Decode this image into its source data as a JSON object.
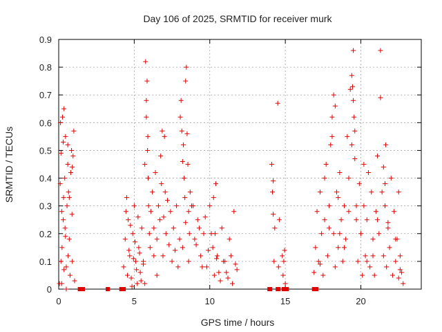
{
  "chart_data": {
    "type": "scatter",
    "title": "Day 106 of 2025, SRMTID for receiver murk",
    "xlabel": "GPS time / hours",
    "ylabel": "SRMTID / TECUs",
    "xlim": [
      0,
      24
    ],
    "ylim": [
      0,
      0.9
    ],
    "xticks": [
      0,
      5,
      10,
      15,
      20
    ],
    "yticks": [
      0,
      0.1,
      0.2,
      0.3,
      0.4,
      0.5,
      0.6,
      0.7,
      0.8,
      0.9
    ],
    "grid": true,
    "marker": "+",
    "color": "#e00000",
    "series": [
      {
        "name": "SRMTID",
        "x": [
          0.05,
          0.1,
          0.12,
          0.15,
          0.2,
          0.22,
          0.25,
          0.3,
          0.32,
          0.35,
          0.4,
          0.42,
          0.45,
          0.5,
          0.55,
          0.6,
          0.62,
          0.65,
          0.7,
          0.75,
          0.8,
          0.85,
          0.88,
          0.9,
          0.95,
          1.0,
          1.05,
          0.15,
          0.3,
          0.5,
          0.2,
          0.45,
          0.7,
          0.9,
          0.35,
          0.6,
          4.3,
          4.4,
          4.5,
          4.6,
          4.7,
          4.8,
          4.9,
          5.0,
          5.1,
          5.2,
          5.3,
          5.4,
          5.5,
          5.6,
          4.45,
          4.55,
          4.65,
          4.75,
          4.85,
          4.95,
          5.05,
          5.15,
          5.25,
          5.35,
          5.45,
          5.6,
          5.7,
          5.75,
          5.8,
          5.85,
          5.9,
          5.95,
          6.0,
          6.05,
          5.8,
          5.88,
          5.92,
          6.1,
          6.2,
          6.3,
          6.4,
          6.5,
          6.6,
          6.7,
          6.8,
          6.9,
          7.0,
          7.1,
          7.2,
          7.3,
          7.4,
          7.5,
          7.6,
          7.7,
          7.8,
          7.9,
          8.0,
          6.75,
          6.85,
          6.95,
          7.05,
          6.5,
          6.3,
          5.7,
          8.05,
          8.1,
          8.15,
          8.2,
          8.25,
          8.3,
          8.35,
          8.4,
          8.45,
          8.5,
          8.55,
          8.6,
          8.65,
          8.7,
          8.2,
          8.4,
          8.6,
          8.8,
          9.0,
          9.2,
          9.4,
          9.6,
          9.8,
          10.0,
          10.2,
          10.4,
          10.6,
          10.8,
          11.0,
          11.2,
          11.4,
          11.6,
          11.8,
          8.9,
          9.1,
          9.3,
          9.5,
          9.7,
          9.9,
          10.1,
          10.3,
          10.5,
          10.7,
          10.9,
          11.1,
          11.3,
          11.5,
          11.7,
          10.25,
          10.35,
          10.45,
          14.1,
          14.15,
          14.2,
          14.25,
          14.3,
          14.5,
          14.6,
          14.8,
          14.85,
          14.9,
          14.95,
          15.0,
          14.2,
          14.55,
          16.9,
          17.0,
          17.1,
          17.2,
          17.3,
          17.4,
          17.5,
          17.6,
          17.7,
          17.8,
          17.9,
          18.0,
          18.1,
          18.2,
          18.3,
          18.4,
          18.5,
          18.6,
          18.7,
          18.8,
          18.9,
          19.0,
          19.1,
          19.2,
          19.3,
          19.4,
          19.5,
          19.6,
          19.7,
          19.8,
          19.9,
          20.0,
          20.1,
          20.2,
          20.3,
          20.4,
          20.5,
          20.6,
          20.7,
          20.8,
          20.9,
          21.0,
          21.1,
          21.2,
          21.3,
          21.4,
          21.5,
          21.6,
          21.7,
          21.8,
          21.9,
          22.0,
          22.1,
          22.2,
          22.3,
          22.4,
          22.5,
          22.6,
          22.7,
          22.8,
          18.1,
          18.2,
          18.3,
          19.4,
          19.45,
          19.5,
          19.55,
          19.6,
          21.3,
          21.5,
          21.6,
          21.65,
          17.6,
          17.9,
          18.5,
          18.9,
          19.2,
          20.2,
          20.8,
          21.1,
          22.3,
          22.5,
          17.3,
          18.6,
          19.7,
          20.4,
          21.8,
          22.6
        ],
        "y": [
          0.02,
          0.38,
          0.6,
          0.49,
          0.28,
          0.15,
          0.62,
          0.53,
          0.33,
          0.65,
          0.4,
          0.22,
          0.55,
          0.08,
          0.3,
          0.45,
          0.12,
          0.35,
          0.18,
          0.05,
          0.42,
          0.5,
          0.27,
          0.1,
          0.48,
          0.57,
          0.03,
          0.1,
          0.25,
          0.0,
          0.02,
          0.19,
          0.33,
          0.44,
          0.07,
          0.52,
          0.08,
          0.18,
          0.33,
          0.25,
          0.12,
          0.04,
          0.2,
          0.3,
          0.1,
          0.02,
          0.15,
          0.06,
          0.22,
          0.09,
          0.28,
          0.05,
          0.14,
          0.23,
          0.01,
          0.11,
          0.17,
          0.07,
          0.26,
          0.13,
          0.03,
          0.1,
          0.45,
          0.82,
          0.62,
          0.75,
          0.55,
          0.3,
          0.2,
          0.15,
          0.68,
          0.5,
          0.4,
          0.28,
          0.35,
          0.22,
          0.42,
          0.18,
          0.3,
          0.25,
          0.38,
          0.12,
          0.55,
          0.2,
          0.32,
          0.16,
          0.28,
          0.1,
          0.22,
          0.14,
          0.3,
          0.08,
          0.18,
          0.48,
          0.57,
          0.26,
          0.35,
          0.05,
          0.12,
          0.02,
          0.62,
          0.68,
          0.57,
          0.46,
          0.52,
          0.4,
          0.33,
          0.75,
          0.8,
          0.56,
          0.45,
          0.28,
          0.2,
          0.35,
          0.15,
          0.24,
          0.1,
          0.3,
          0.18,
          0.25,
          0.12,
          0.2,
          0.08,
          0.3,
          0.15,
          0.38,
          0.06,
          0.22,
          0.1,
          0.04,
          0.12,
          0.28,
          0.07,
          0.3,
          0.16,
          0.22,
          0.08,
          0.26,
          0.14,
          0.2,
          0.05,
          0.12,
          0.03,
          0.1,
          0.06,
          0.18,
          0.02,
          0.09,
          0.33,
          0.2,
          0.11,
          0.45,
          0.35,
          0.27,
          0.1,
          0.22,
          0.67,
          0.25,
          0.12,
          0.05,
          0.1,
          0.14,
          0.02,
          0.39,
          0.08,
          0.06,
          0.15,
          0.28,
          0.1,
          0.35,
          0.2,
          0.05,
          0.25,
          0.45,
          0.12,
          0.3,
          0.52,
          0.62,
          0.2,
          0.08,
          0.35,
          0.15,
          0.42,
          0.25,
          0.1,
          0.3,
          0.18,
          0.55,
          0.4,
          0.72,
          0.52,
          0.86,
          0.47,
          0.25,
          0.1,
          0.38,
          0.2,
          0.05,
          0.3,
          0.12,
          0.25,
          0.42,
          0.08,
          0.35,
          0.18,
          0.05,
          0.28,
          0.48,
          0.2,
          0.86,
          0.35,
          0.12,
          0.3,
          0.08,
          0.22,
          0.15,
          0.4,
          0.05,
          0.28,
          0.1,
          0.18,
          0.04,
          0.12,
          0.06,
          0.02,
          0.55,
          0.7,
          0.66,
          0.77,
          0.73,
          0.68,
          0.62,
          0.57,
          0.69,
          0.44,
          0.38,
          0.52,
          0.4,
          0.22,
          0.33,
          0.15,
          0.28,
          0.45,
          0.12,
          0.25,
          0.18,
          0.35,
          0.09,
          0.2,
          0.3,
          0.1,
          0.24,
          0.07
        ]
      }
    ],
    "zero_marks_x": [
      1.4,
      1.45,
      1.5,
      1.55,
      1.6,
      3.25,
      4.15,
      4.2,
      4.25,
      4.3,
      13.95,
      14.0,
      14.5,
      14.55,
      14.9,
      15.0,
      15.05,
      15.1,
      16.9,
      17.0,
      17.05
    ]
  }
}
